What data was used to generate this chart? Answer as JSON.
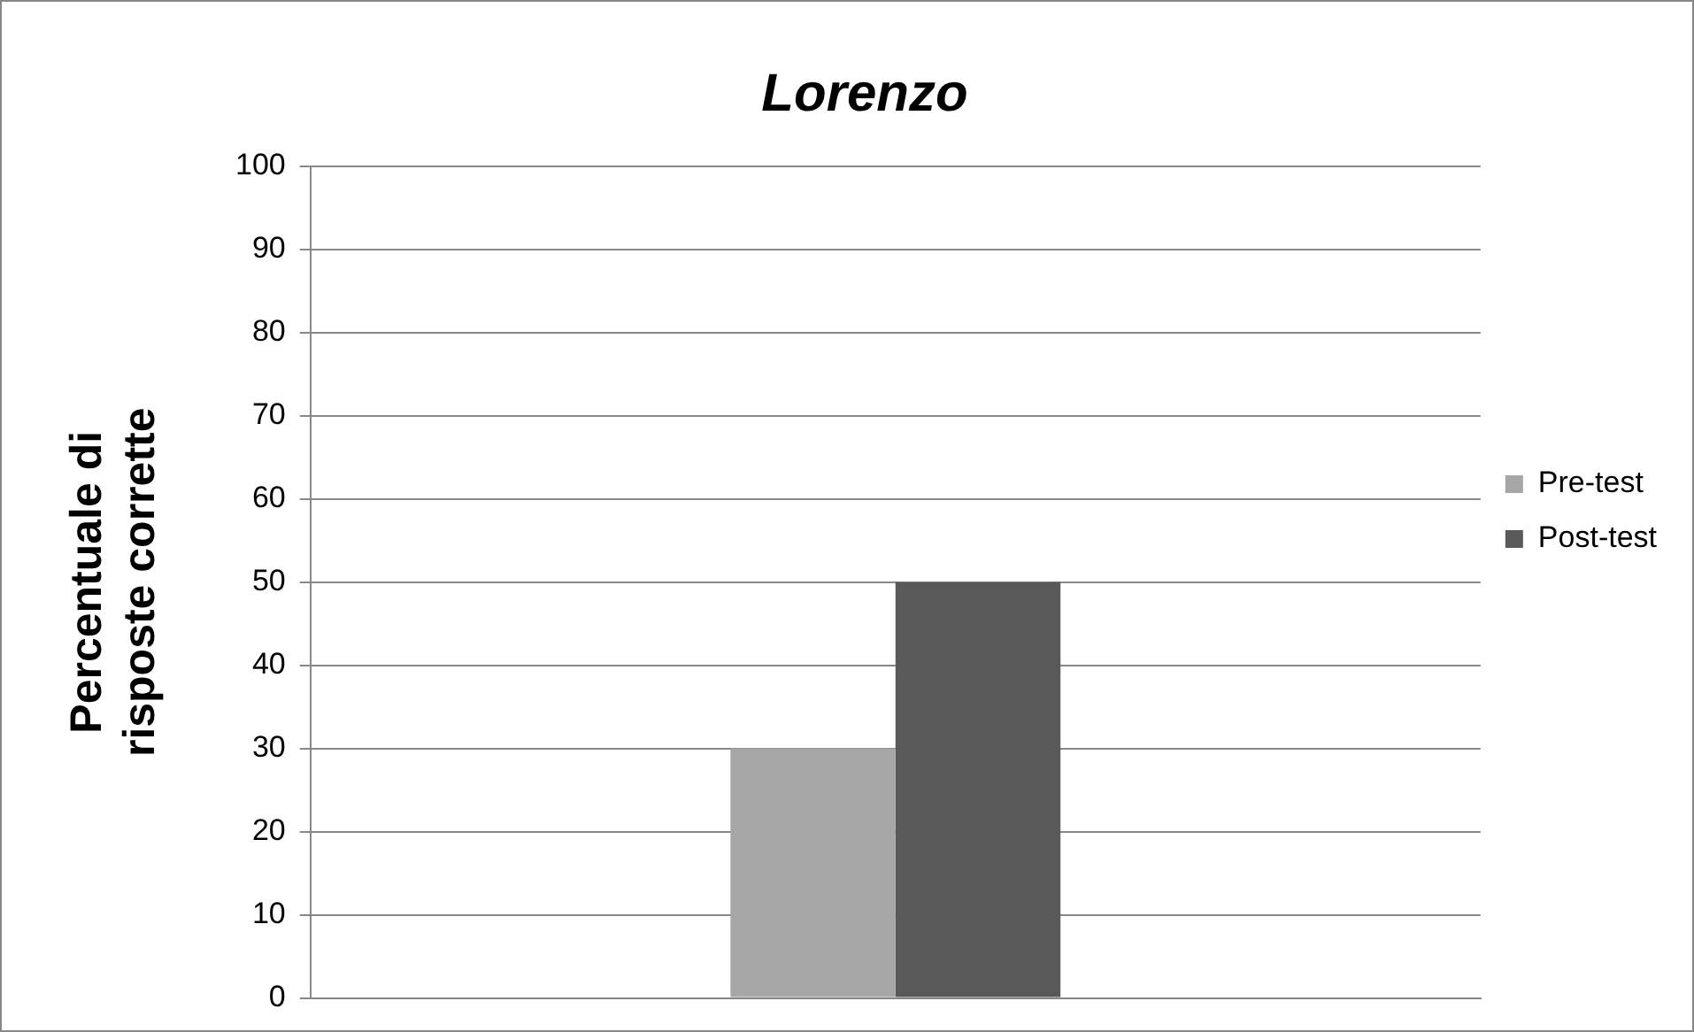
{
  "chart_data": {
    "type": "bar",
    "title": "Lorenzo",
    "ylabel": "Percentuale di risposte corrette",
    "categories": [
      null
    ],
    "series": [
      {
        "name": "Pre-test",
        "color": "#a6a6a6",
        "values": [
          30
        ]
      },
      {
        "name": "Post-test",
        "color": "#595959",
        "values": [
          50
        ]
      }
    ],
    "ylim": [
      0,
      100
    ],
    "yticks": [
      0,
      10,
      20,
      30,
      40,
      50,
      60,
      70,
      80,
      90,
      100
    ],
    "grid": "y",
    "legend": "right",
    "tick_labels": "y"
  }
}
